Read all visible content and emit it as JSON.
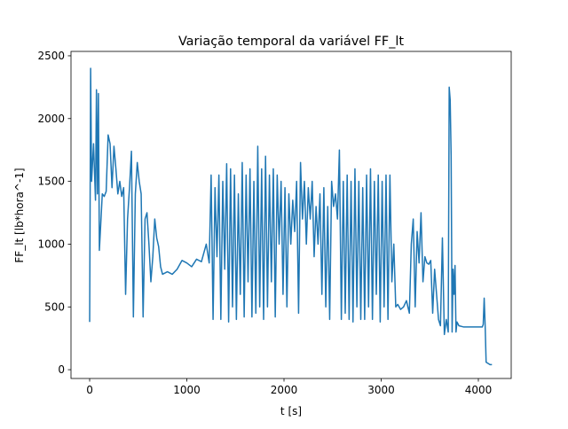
{
  "chart_data": {
    "type": "line",
    "title": "Variação temporal da variável FF_lt",
    "xlabel": "t [s]",
    "ylabel": "FF_lt [lb*hora^-1]",
    "color": "#1f77b4",
    "x": [
      0,
      10,
      20,
      40,
      60,
      70,
      80,
      90,
      100,
      110,
      130,
      150,
      170,
      190,
      210,
      230,
      250,
      270,
      290,
      310,
      330,
      350,
      370,
      390,
      410,
      430,
      450,
      470,
      490,
      510,
      530,
      550,
      570,
      590,
      610,
      630,
      650,
      670,
      690,
      710,
      730,
      750,
      800,
      850,
      900,
      950,
      1000,
      1050,
      1100,
      1150,
      1200,
      1230,
      1250,
      1270,
      1290,
      1310,
      1330,
      1350,
      1370,
      1390,
      1410,
      1430,
      1450,
      1470,
      1490,
      1510,
      1530,
      1550,
      1570,
      1590,
      1610,
      1630,
      1650,
      1670,
      1690,
      1710,
      1730,
      1750,
      1770,
      1790,
      1810,
      1830,
      1850,
      1870,
      1890,
      1910,
      1930,
      1950,
      1970,
      1990,
      2010,
      2030,
      2050,
      2070,
      2090,
      2110,
      2130,
      2150,
      2170,
      2190,
      2210,
      2230,
      2250,
      2270,
      2290,
      2310,
      2330,
      2350,
      2370,
      2390,
      2410,
      2430,
      2450,
      2470,
      2490,
      2510,
      2530,
      2550,
      2570,
      2590,
      2610,
      2630,
      2650,
      2670,
      2690,
      2710,
      2730,
      2750,
      2770,
      2790,
      2810,
      2830,
      2850,
      2870,
      2890,
      2910,
      2930,
      2950,
      2970,
      2990,
      3010,
      3030,
      3050,
      3070,
      3090,
      3110,
      3130,
      3150,
      3170,
      3200,
      3230,
      3260,
      3290,
      3310,
      3330,
      3350,
      3370,
      3390,
      3410,
      3430,
      3450,
      3470,
      3490,
      3510,
      3530,
      3550,
      3570,
      3590,
      3610,
      3630,
      3650,
      3670,
      3690,
      3700,
      3710,
      3720,
      3730,
      3740,
      3750,
      3760,
      3770,
      3780,
      3800,
      3850,
      3900,
      3950,
      4000,
      4040,
      4050,
      4060,
      4070,
      4080,
      4100,
      4120,
      4140
    ],
    "values": [
      380,
      2400,
      1500,
      1800,
      1350,
      2230,
      1400,
      2200,
      950,
      1100,
      1400,
      1380,
      1420,
      1870,
      1800,
      1450,
      1780,
      1600,
      1400,
      1500,
      1380,
      1450,
      600,
      1200,
      1450,
      1740,
      420,
      1400,
      1650,
      1500,
      1400,
      420,
      1200,
      1250,
      1000,
      700,
      900,
      1200,
      1050,
      980,
      820,
      760,
      780,
      760,
      800,
      870,
      850,
      820,
      880,
      860,
      1000,
      850,
      1550,
      400,
      1450,
      900,
      1550,
      400,
      1500,
      800,
      1640,
      380,
      1600,
      500,
      1550,
      400,
      1400,
      600,
      1650,
      420,
      1550,
      700,
      1600,
      420,
      1500,
      450,
      1780,
      500,
      1600,
      400,
      1700,
      500,
      1550,
      700,
      1600,
      420,
      1550,
      1000,
      1500,
      600,
      1450,
      500,
      1400,
      1000,
      1350,
      1100,
      1500,
      450,
      1650,
      1200,
      1500,
      1000,
      1450,
      1200,
      1500,
      900,
      1300,
      1000,
      1400,
      600,
      1450,
      500,
      1300,
      400,
      1500,
      1300,
      1400,
      1200,
      1750,
      400,
      1500,
      450,
      1550,
      400,
      1500,
      380,
      1600,
      500,
      1500,
      400,
      1450,
      400,
      1550,
      500,
      1600,
      400,
      1500,
      600,
      1550,
      380,
      1500,
      500,
      1550,
      400,
      1550,
      700,
      1000,
      500,
      520,
      480,
      500,
      550,
      450,
      1000,
      1200,
      500,
      1100,
      850,
      1250,
      700,
      900,
      850,
      840,
      870,
      450,
      800,
      600,
      400,
      350,
      1050,
      280,
      400,
      300,
      2250,
      2150,
      1700,
      300,
      800,
      600,
      830,
      300,
      380,
      350,
      340,
      340,
      340,
      340,
      340,
      360,
      570,
      350,
      60,
      50,
      40,
      40
    ],
    "xlim": [
      -192,
      4338
    ],
    "xticks": [
      0,
      1000,
      2000,
      3000,
      4000
    ],
    "ylim": [
      -70,
      2535
    ],
    "yticks": [
      0,
      500,
      1000,
      1500,
      2000,
      2500
    ]
  }
}
